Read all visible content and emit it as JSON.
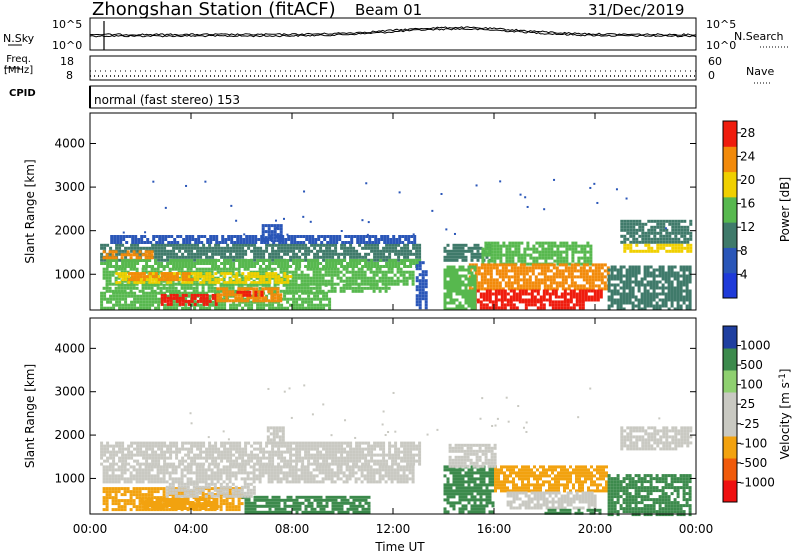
{
  "header": {
    "station_title": "Zhongshan Station (fitACF)",
    "beam": "Beam 01",
    "date": "31/Dec/2019"
  },
  "noise_panel": {
    "left_label": "N.Sky",
    "right_label": "N.Search",
    "left_ticks": [
      "10^5",
      "10^0"
    ],
    "right_ticks": [
      "10^5",
      "10^0"
    ]
  },
  "freq_panel": {
    "left_label_line1": "Freq.",
    "left_label_line2": "[MHz]",
    "right_label": "Nave",
    "left_ticks": [
      "18",
      "8"
    ],
    "right_ticks": [
      "60",
      "0"
    ]
  },
  "cpid_panel": {
    "label": "CPID",
    "mode_text": "normal (fast stereo) 153"
  },
  "colors": {
    "power": [
      "#1f3bd9",
      "#2a56b8",
      "#3f7a6a",
      "#57b84e",
      "#f0d000",
      "#f28a0a",
      "#ef1c0d"
    ],
    "velocity": [
      "#ef1010",
      "#f05a0a",
      "#f2a20f",
      "#c9c9c2",
      "#c9c9c2",
      "#8fd070",
      "#3c8a4c",
      "#1f3fa0"
    ]
  },
  "chart_data": [
    {
      "type": "heatmap",
      "title": "Power",
      "ylabel": "Slant Range [km]",
      "xlabel": "",
      "x_ticks": [
        "00:00",
        "04:00",
        "08:00",
        "12:00",
        "16:00",
        "20:00",
        "00:00"
      ],
      "y_ticks": [
        1000,
        2000,
        3000,
        4000
      ],
      "ylim": [
        180,
        4700
      ],
      "colorbar": {
        "label": "Power [dB]",
        "ticks": [
          4,
          8,
          12,
          16,
          20,
          24,
          28
        ],
        "range": [
          0,
          30
        ]
      },
      "regions": [
        {
          "t0": 0.4,
          "t1": 13.0,
          "r0": 1350,
          "r1": 1700,
          "level": 2
        },
        {
          "t0": 0.4,
          "t1": 13.0,
          "r0": 1150,
          "r1": 1350,
          "level": 3
        },
        {
          "t0": 0.5,
          "t1": 12.8,
          "r0": 780,
          "r1": 1150,
          "level": 3
        },
        {
          "t0": 1.0,
          "t1": 8.0,
          "r0": 780,
          "r1": 1050,
          "level": 4
        },
        {
          "t0": 0.5,
          "t1": 2.5,
          "r0": 1400,
          "r1": 1550,
          "level": 5
        },
        {
          "t0": 0.5,
          "t1": 11.8,
          "r0": 600,
          "r1": 780,
          "level": 3
        },
        {
          "t0": 0.4,
          "t1": 9.5,
          "r0": 250,
          "r1": 600,
          "level": 3
        },
        {
          "t0": 2.8,
          "t1": 5.0,
          "r0": 300,
          "r1": 550,
          "level": 6
        },
        {
          "t0": 5.0,
          "t1": 7.5,
          "r0": 420,
          "r1": 700,
          "level": 5
        },
        {
          "t0": 5.8,
          "t1": 6.8,
          "r0": 500,
          "r1": 620,
          "level": 6
        },
        {
          "t0": 1.5,
          "t1": 4.0,
          "r0": 900,
          "r1": 1050,
          "level": 5
        },
        {
          "t0": 0.8,
          "t1": 12.9,
          "r0": 1720,
          "r1": 1900,
          "level": 1
        },
        {
          "t0": 6.8,
          "t1": 7.6,
          "r0": 1800,
          "r1": 2150,
          "level": 1
        },
        {
          "t0": 14.0,
          "t1": 15.8,
          "r0": 1300,
          "r1": 1700,
          "level": 2
        },
        {
          "t0": 15.5,
          "t1": 19.8,
          "r0": 1250,
          "r1": 1750,
          "level": 3
        },
        {
          "t0": 15.0,
          "t1": 20.5,
          "r0": 650,
          "r1": 1250,
          "level": 5
        },
        {
          "t0": 15.2,
          "t1": 20.3,
          "r0": 400,
          "r1": 650,
          "level": 6
        },
        {
          "t0": 15.2,
          "t1": 19.5,
          "r0": 200,
          "r1": 400,
          "level": 6
        },
        {
          "t0": 14.0,
          "t1": 15.2,
          "r0": 200,
          "r1": 1200,
          "level": 3
        },
        {
          "t0": 20.5,
          "t1": 23.8,
          "r0": 200,
          "r1": 1200,
          "level": 2
        },
        {
          "t0": 21.0,
          "t1": 23.8,
          "r0": 1700,
          "r1": 2250,
          "level": 2
        },
        {
          "t0": 21.0,
          "t1": 23.8,
          "r0": 1500,
          "r1": 1700,
          "level": 4
        },
        {
          "t0": 12.9,
          "t1": 13.3,
          "r0": 200,
          "r1": 1300,
          "level": 1
        }
      ]
    },
    {
      "type": "heatmap",
      "title": "Velocity",
      "ylabel": "Slant Range [km]",
      "xlabel": "Time UT",
      "x_ticks": [
        "00:00",
        "04:00",
        "08:00",
        "12:00",
        "16:00",
        "20:00",
        "00:00"
      ],
      "y_ticks": [
        1000,
        2000,
        3000,
        4000
      ],
      "ylim": [
        180,
        4700
      ],
      "colorbar": {
        "label": "Velocity [m s^-1]",
        "ticks": [
          "1000",
          "500",
          "100",
          "25",
          "-25",
          "-100",
          "-500",
          "-1000"
        ]
      },
      "regions": [
        {
          "t0": 0.4,
          "t1": 13.0,
          "r0": 1300,
          "r1": 1850,
          "level": 3
        },
        {
          "t0": 0.5,
          "t1": 12.8,
          "r0": 900,
          "r1": 1300,
          "level": 3
        },
        {
          "t0": 0.5,
          "t1": 6.0,
          "r0": 250,
          "r1": 800,
          "level": 2
        },
        {
          "t0": 2.0,
          "t1": 5.0,
          "r0": 300,
          "r1": 550,
          "level": 2
        },
        {
          "t0": 6.0,
          "t1": 11.0,
          "r0": 250,
          "r1": 600,
          "level": 6
        },
        {
          "t0": 3.0,
          "t1": 6.5,
          "r0": 600,
          "r1": 900,
          "level": 3
        },
        {
          "t0": 7.0,
          "t1": 7.6,
          "r0": 1800,
          "r1": 2200,
          "level": 3
        },
        {
          "t0": 14.0,
          "t1": 16.0,
          "r0": 200,
          "r1": 1300,
          "level": 6
        },
        {
          "t0": 16.0,
          "t1": 20.5,
          "r0": 700,
          "r1": 1300,
          "level": 2
        },
        {
          "t0": 16.5,
          "t1": 20.0,
          "r0": 300,
          "r1": 700,
          "level": 3
        },
        {
          "t0": 18.0,
          "t1": 20.2,
          "r0": 200,
          "r1": 300,
          "level": 6
        },
        {
          "t0": 20.5,
          "t1": 23.8,
          "r0": 200,
          "r1": 1100,
          "level": 6
        },
        {
          "t0": 21.0,
          "t1": 23.8,
          "r0": 1650,
          "r1": 2200,
          "level": 3
        },
        {
          "t0": 14.2,
          "t1": 16.0,
          "r0": 1300,
          "r1": 1800,
          "level": 3
        }
      ]
    }
  ]
}
